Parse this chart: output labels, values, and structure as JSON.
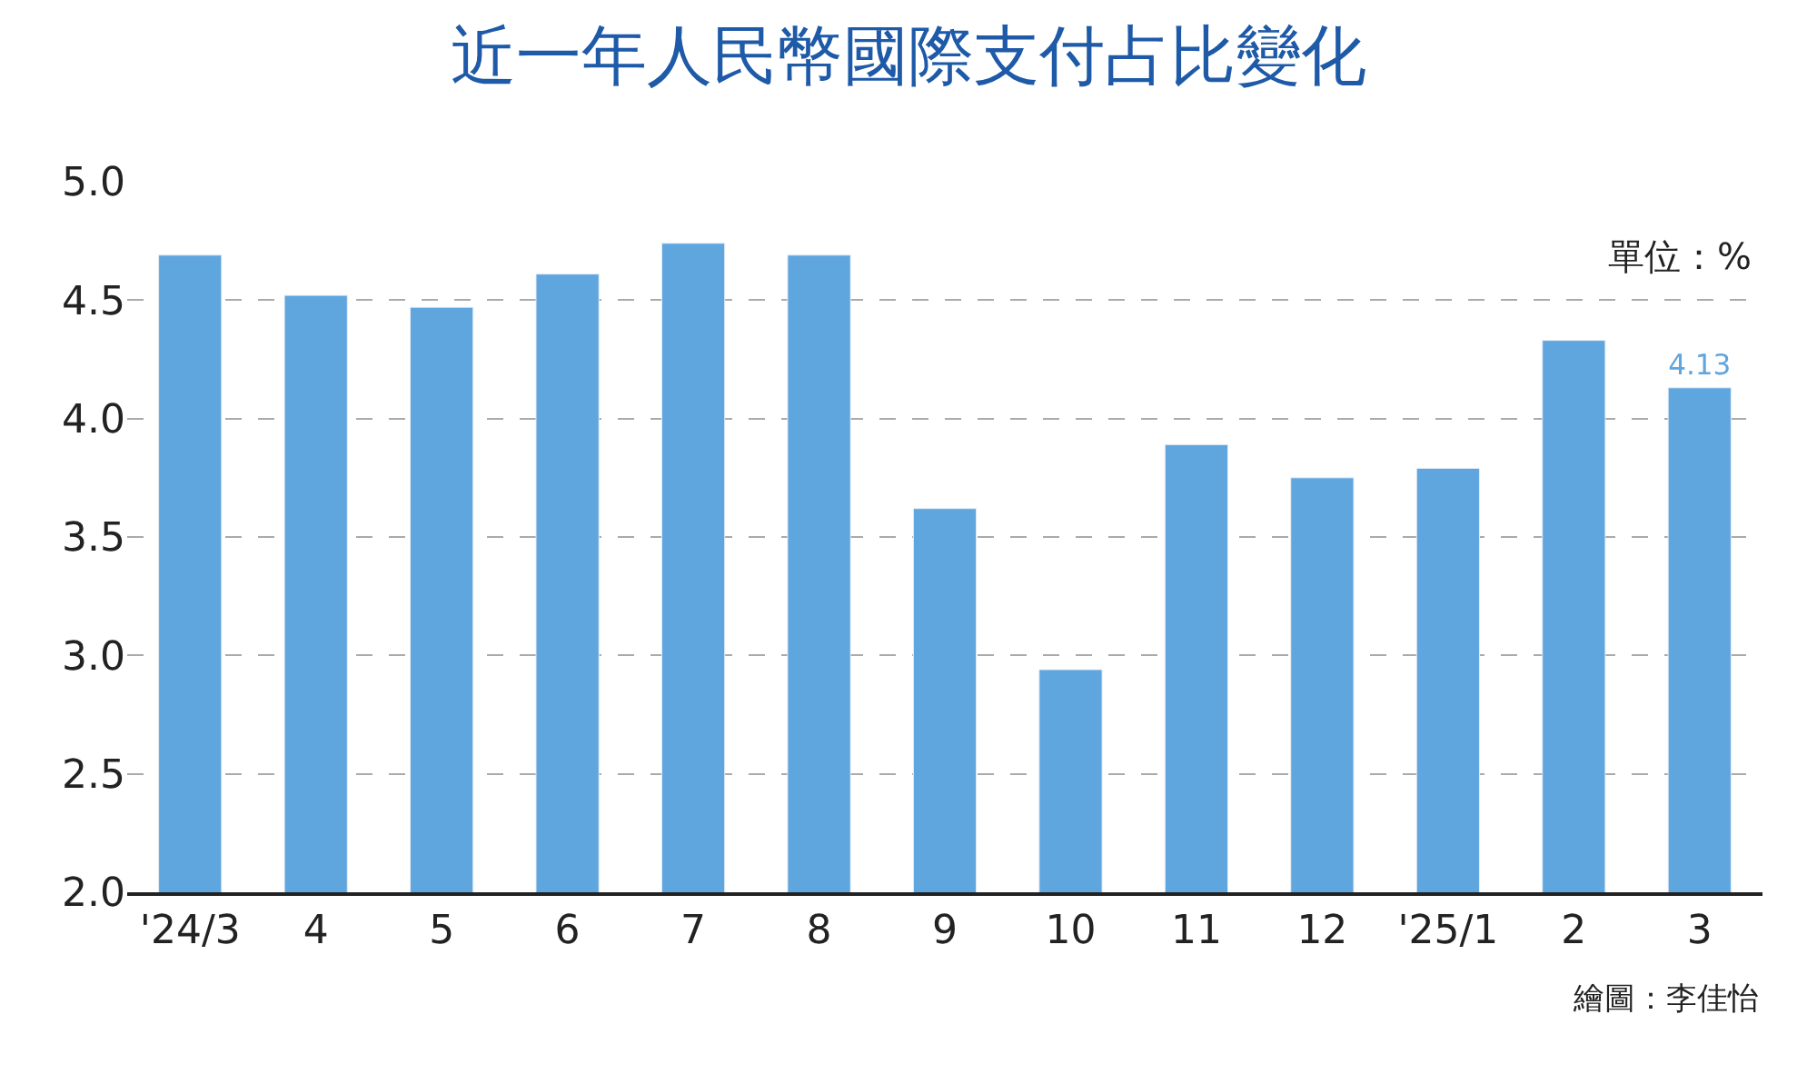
{
  "chart_data": {
    "type": "bar",
    "title": "近一年人民幣國際支付占比變化",
    "categories": [
      "'24/3",
      "4",
      "5",
      "6",
      "7",
      "8",
      "9",
      "10",
      "11",
      "12",
      "'25/1",
      "2",
      "3"
    ],
    "values": [
      4.69,
      4.52,
      4.47,
      4.61,
      4.74,
      4.69,
      3.62,
      2.94,
      3.89,
      3.75,
      3.79,
      4.33,
      4.13
    ],
    "value_labels": [
      null,
      null,
      null,
      null,
      null,
      null,
      null,
      null,
      null,
      null,
      null,
      null,
      "4.13"
    ],
    "color": "#5fa5de",
    "ylim": [
      2.0,
      5.0
    ],
    "yticks": [
      {
        "value": 2.0,
        "label": "2.0"
      },
      {
        "value": 2.5,
        "label": "2.5"
      },
      {
        "value": 3.0,
        "label": "3.0"
      },
      {
        "value": 3.5,
        "label": "3.5"
      },
      {
        "value": 4.0,
        "label": "4.0"
      },
      {
        "value": 4.5,
        "label": "4.5"
      },
      {
        "value": 5.0,
        "label": "5.0"
      }
    ],
    "grid": "y",
    "annotations": [
      "單位：%",
      "繪圖：李佳怡"
    ]
  }
}
